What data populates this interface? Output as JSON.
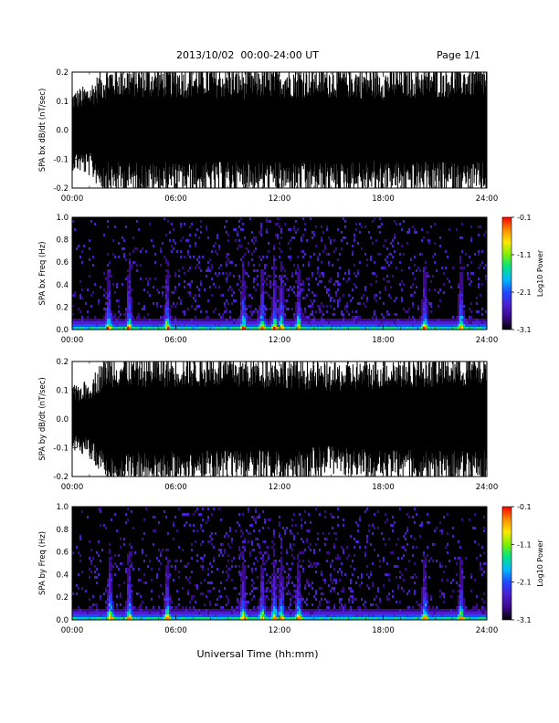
{
  "header": {
    "date_range": "2013/10/02  00:00-24:00 UT",
    "page": "Page 1/1"
  },
  "xlabel": "Universal Time (hh:mm)",
  "colorbar": {
    "label": "Log10 Power",
    "ticks": [
      "-0.1",
      "-1.1",
      "-2.1",
      "-3.1"
    ],
    "range": [
      -3.1,
      -0.1
    ],
    "colors": [
      "#000000",
      "#3a0a8a",
      "#4b1fd0",
      "#1f49ff",
      "#00b8ff",
      "#00e08a",
      "#7cf000",
      "#ffe800",
      "#ff8a00",
      "#ff0000"
    ]
  },
  "chart_data": [
    {
      "type": "line",
      "ylabel": "SPA bx dB/dt (nT/sec)",
      "x_ticks": [
        "00:00",
        "06:00",
        "12:00",
        "18:00",
        "24:00"
      ],
      "y_ticks": [
        "-0.2",
        "-0.1",
        "0.0",
        "0.1",
        "0.2"
      ],
      "xlim": [
        "00:00",
        "24:00"
      ],
      "ylim": [
        -0.2,
        0.2
      ],
      "series": [
        {
          "x_hours": [
            0,
            1,
            2,
            4,
            8,
            10,
            12,
            15,
            18,
            20,
            22,
            24
          ],
          "y_envelope": [
            0.12,
            0.14,
            0.2,
            0.2,
            0.2,
            0.19,
            0.2,
            0.2,
            0.19,
            0.2,
            0.2,
            0.2
          ]
        }
      ]
    },
    {
      "type": "heatmap",
      "ylabel": "SPA bx Freq (Hz)",
      "x_ticks": [
        "00:00",
        "06:00",
        "12:00",
        "18:00",
        "24:00"
      ],
      "y_ticks": [
        "0.0",
        "0.2",
        "0.4",
        "0.6",
        "0.8",
        "1.0"
      ],
      "xlim": [
        "00:00",
        "24:00"
      ],
      "ylim": [
        0.0,
        1.0
      ],
      "zlim": [
        -3.1,
        -0.1
      ],
      "bursts_hours": [
        2.1,
        3.3,
        5.5,
        9.9,
        11.0,
        11.7,
        12.1,
        13.1,
        20.4,
        22.5
      ]
    },
    {
      "type": "line",
      "ylabel": "SPA by dB/dt (nT/sec)",
      "x_ticks": [
        "00:00",
        "06:00",
        "12:00",
        "18:00",
        "24:00"
      ],
      "y_ticks": [
        "-0.2",
        "-0.1",
        "0.0",
        "0.1",
        "0.2"
      ],
      "xlim": [
        "00:00",
        "24:00"
      ],
      "ylim": [
        -0.2,
        0.2
      ],
      "series": [
        {
          "x_hours": [
            0,
            1,
            2,
            4,
            8,
            10,
            12,
            15,
            18,
            20,
            22,
            24
          ],
          "y_envelope": [
            0.1,
            0.12,
            0.2,
            0.2,
            0.2,
            0.19,
            0.2,
            0.17,
            0.19,
            0.2,
            0.2,
            0.2
          ]
        }
      ]
    },
    {
      "type": "heatmap",
      "ylabel": "SPA by Freq (Hz)",
      "x_ticks": [
        "00:00",
        "06:00",
        "12:00",
        "18:00",
        "24:00"
      ],
      "y_ticks": [
        "0.0",
        "0.2",
        "0.4",
        "0.6",
        "0.8",
        "1.0"
      ],
      "xlim": [
        "00:00",
        "24:00"
      ],
      "ylim": [
        0.0,
        1.0
      ],
      "zlim": [
        -3.1,
        -0.1
      ],
      "bursts_hours": [
        2.2,
        3.3,
        5.5,
        9.9,
        11.0,
        11.7,
        12.1,
        13.1,
        20.4,
        22.5
      ]
    }
  ]
}
